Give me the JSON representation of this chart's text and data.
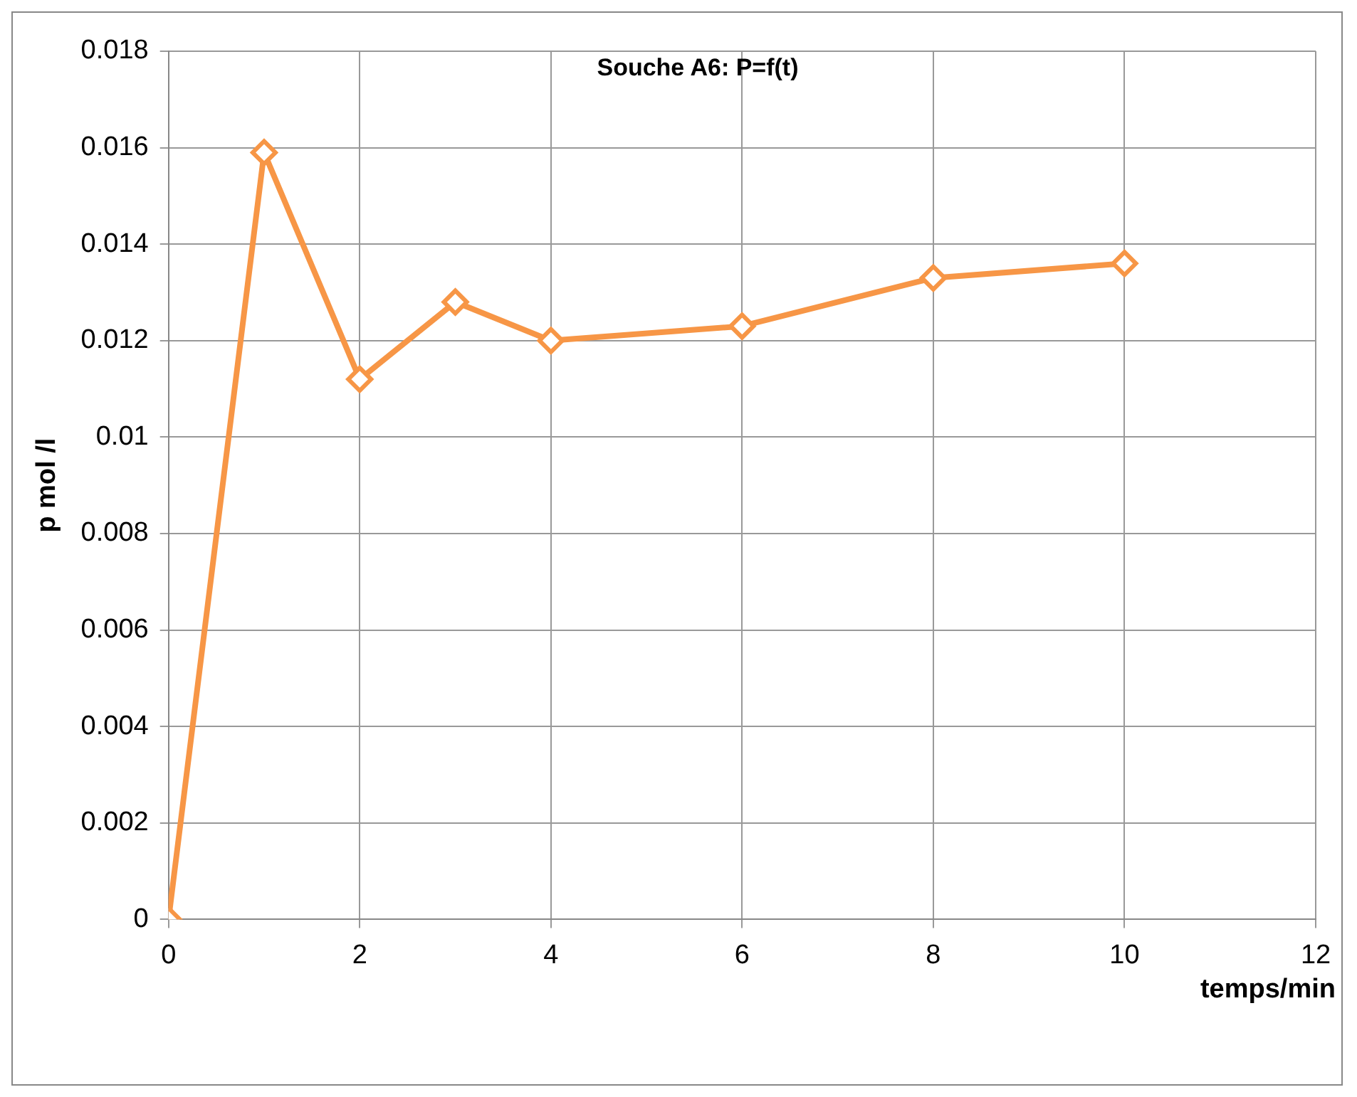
{
  "chart_data": {
    "type": "line",
    "title": "Souche A6: P=f(t)",
    "xlabel": "temps/min",
    "ylabel": "p mol /l",
    "x": [
      0,
      1,
      2,
      3,
      4,
      6,
      8,
      10
    ],
    "series": [
      {
        "color": "#f79646",
        "values": [
          0,
          0.0159,
          0.0112,
          0.0128,
          0.012,
          0.0123,
          0.0133,
          0.0136
        ]
      }
    ],
    "xlim": [
      0,
      12
    ],
    "xticks": [
      0,
      2,
      4,
      6,
      8,
      10,
      12
    ],
    "ylim": [
      0,
      0.018
    ],
    "yticks": [
      0,
      0.002,
      0.004,
      0.006,
      0.008,
      0.01,
      0.012,
      0.014,
      0.016,
      0.018
    ],
    "grid": true,
    "legend": false,
    "marker": "diamond",
    "line_style": "solid"
  }
}
